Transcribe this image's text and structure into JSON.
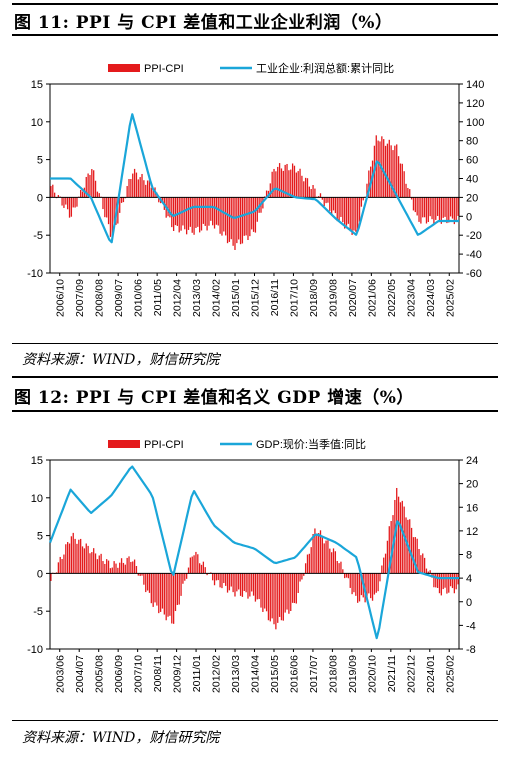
{
  "figures": [
    {
      "title": "图 11: PPI 与 CPI 差值和工业企业利润（%）",
      "source": "资料来源：WIND，财信研究院"
    },
    {
      "title": "图 12: PPI 与 CPI 差值和名义 GDP 增速（%）",
      "source": "资料来源：WIND，财信研究院"
    }
  ],
  "chart_data": [
    {
      "type": "bar",
      "legend_position": "top",
      "grid": false,
      "x": [
        "2006/10",
        "2007/09",
        "2008/08",
        "2009/07",
        "2010/06",
        "2011/05",
        "2012/04",
        "2013/03",
        "2014/02",
        "2015/01",
        "2015/12",
        "2016/11",
        "2017/10",
        "2018/09",
        "2019/08",
        "2020/07",
        "2021/06",
        "2022/05",
        "2023/04",
        "2024/03",
        "2025/02"
      ],
      "ylim_left": [
        -10,
        15
      ],
      "yticks_left": [
        -10,
        -5,
        0,
        5,
        10,
        15
      ],
      "ylim_right": [
        -60,
        140
      ],
      "yticks_right": [
        -60,
        -40,
        -20,
        0,
        20,
        40,
        60,
        80,
        100,
        120,
        140
      ],
      "series": [
        {
          "name": "PPI-CPI",
          "type": "bar",
          "axis": "left",
          "color": "#e41a1c",
          "values": [
            1.5,
            -2.5,
            4.0,
            -5.5,
            3.5,
            1.5,
            -4.0,
            -4.5,
            -3.5,
            -6.5,
            -4.5,
            4.0,
            4.0,
            0.8,
            -2.5,
            -5.0,
            8.0,
            6.5,
            -3.0,
            -3.0,
            -3.0
          ]
        },
        {
          "name": "工业企业:利润总额:累计同比",
          "type": "line",
          "axis": "right",
          "color": "#1aa6d9",
          "values": [
            40,
            40,
            20,
            -30,
            110,
            30,
            0,
            10,
            10,
            -2,
            5,
            30,
            20,
            18,
            -3,
            -20,
            60,
            20,
            -20,
            -5,
            -5
          ]
        }
      ]
    },
    {
      "type": "bar",
      "legend_position": "top",
      "grid": false,
      "x": [
        "2003/06",
        "2004/07",
        "2005/08",
        "2006/09",
        "2007/10",
        "2008/11",
        "2009/12",
        "2011/01",
        "2012/02",
        "2013/03",
        "2014/04",
        "2015/05",
        "2016/06",
        "2017/07",
        "2018/08",
        "2019/09",
        "2020/10",
        "2021/11",
        "2022/12",
        "2024/01",
        "2025/02"
      ],
      "ylim_left": [
        -10,
        15
      ],
      "yticks_left": [
        -10,
        -5,
        0,
        5,
        10,
        15
      ],
      "ylim_right": [
        -8,
        24
      ],
      "yticks_right": [
        -8,
        -4,
        0,
        4,
        8,
        12,
        16,
        20,
        24
      ],
      "series": [
        {
          "name": "PPI-CPI",
          "type": "bar",
          "axis": "left",
          "color": "#e41a1c",
          "values": [
            -1.0,
            5.0,
            3.0,
            1.0,
            2.0,
            -4.0,
            -6.5,
            3.0,
            -1.0,
            -2.5,
            -3.0,
            -7.0,
            -4.0,
            6.0,
            2.5,
            -3.5,
            -3.0,
            11.0,
            4.0,
            -2.5,
            -2.0
          ]
        },
        {
          "name": "GDP:现价:当季值:同比",
          "type": "line",
          "axis": "right",
          "color": "#1aa6d9",
          "values": [
            10,
            19,
            15,
            18,
            23,
            18,
            4,
            19,
            13,
            10,
            9,
            6.5,
            7.5,
            11.5,
            10,
            7.5,
            -6.5,
            14,
            5,
            4,
            4
          ]
        }
      ]
    }
  ]
}
